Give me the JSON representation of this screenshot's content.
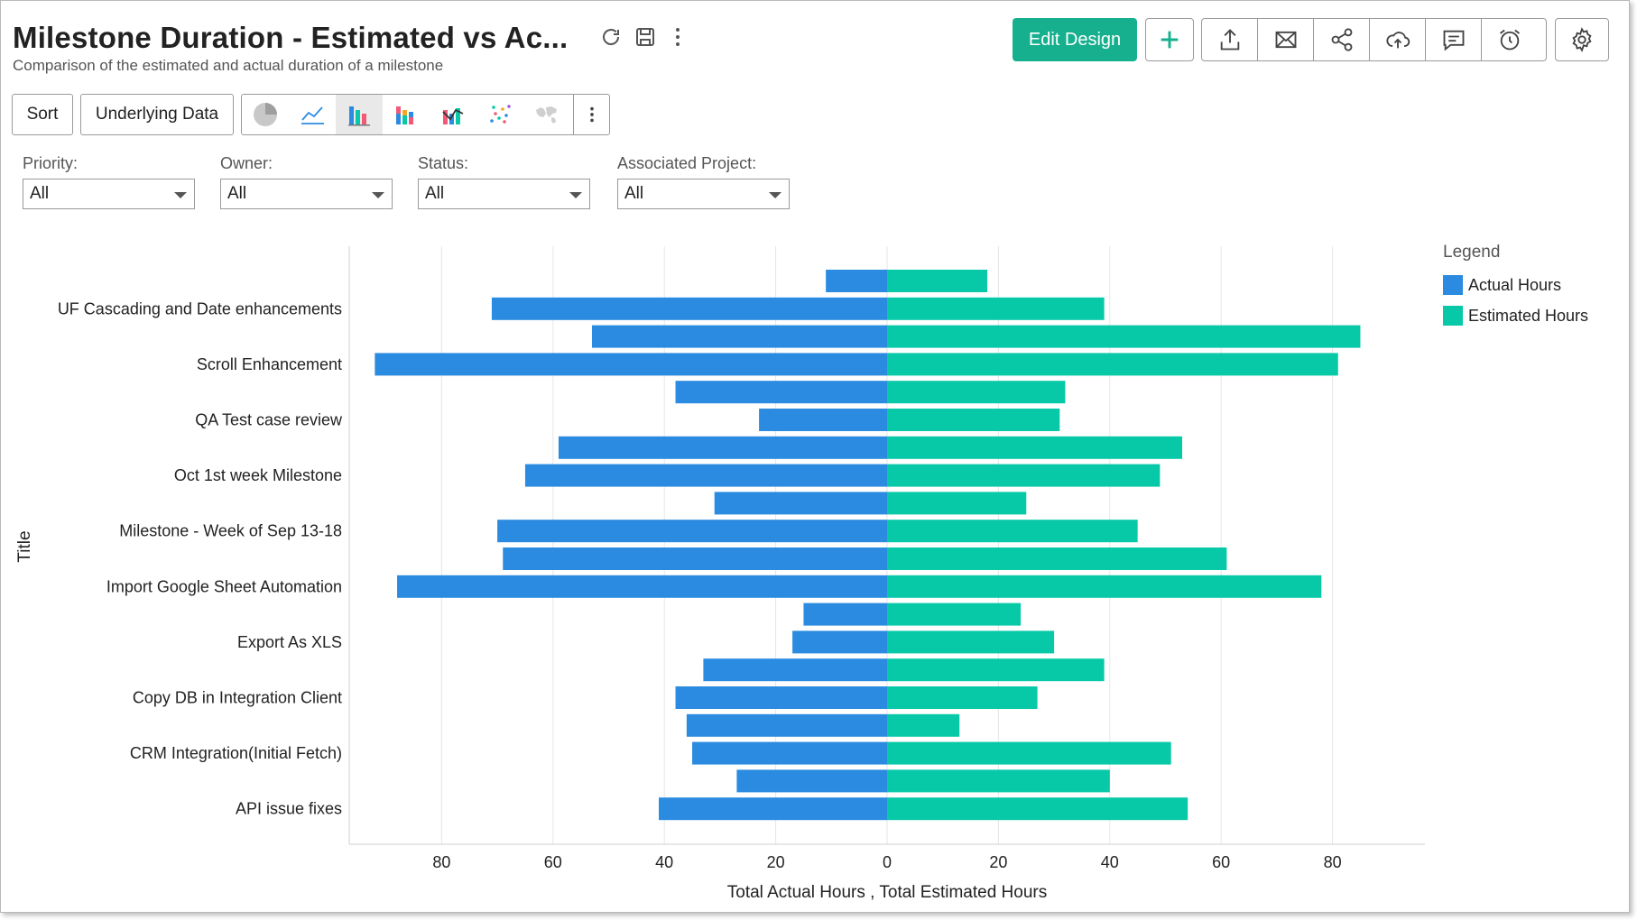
{
  "header": {
    "title": "Milestone Duration - Estimated vs Ac...",
    "subtitle": "Comparison of the estimated and actual duration of a milestone",
    "icons": [
      "refresh-icon",
      "save-icon",
      "more-vertical-icon"
    ]
  },
  "toolbar": {
    "edit_design_label": "Edit Design",
    "accent_color": "#17b08e",
    "icons": [
      "add-icon",
      "export-icon",
      "email-icon",
      "share-icon",
      "publish-cloud-icon",
      "comment-icon",
      "alarm-icon",
      "settings-icon"
    ]
  },
  "controls": {
    "sort_label": "Sort",
    "underlying_data_label": "Underlying Data",
    "chart_types": [
      "pie-chart-icon",
      "line-chart-icon",
      "bar-chart-icon",
      "stacked-bar-chart-icon",
      "combination-chart-icon",
      "scatter-chart-icon",
      "map-chart-icon"
    ],
    "active_chart_type": "bar-chart-icon"
  },
  "filters": [
    {
      "label": "Priority:",
      "value": "All"
    },
    {
      "label": "Owner:",
      "value": "All"
    },
    {
      "label": "Status:",
      "value": "All"
    },
    {
      "label": "Associated Project:",
      "value": "All"
    }
  ],
  "legend": {
    "title": "Legend",
    "items": [
      {
        "label": "Actual Hours",
        "color": "#2a8be0"
      },
      {
        "label": "Estimated Hours",
        "color": "#07c9a8"
      }
    ]
  },
  "chart_data": {
    "type": "bar",
    "orientation": "horizontal-butterfly",
    "xlabel": "Total Actual Hours , Total Estimated Hours",
    "ylabel": "Title",
    "xlim": [
      -97,
      97
    ],
    "x_ticks": [
      -80,
      -60,
      -40,
      -20,
      0,
      20,
      40,
      60,
      80
    ],
    "x_tick_labels": [
      "80",
      "60",
      "40",
      "20",
      "0",
      "20",
      "40",
      "60",
      "80"
    ],
    "grid": "vertical",
    "legend_position": "top-right",
    "categories": [
      "",
      "UF Cascading and Date enhancements",
      "",
      "Scroll Enhancement",
      "",
      "QA Test case review",
      "",
      "Oct 1st week Milestone",
      "",
      "Milestone - Week of Sep 13-18",
      "",
      "Import Google Sheet Automation",
      "",
      "Export As XLS",
      "",
      "Copy DB in Integration Client",
      "",
      "CRM Integration(Initial Fetch)",
      "",
      "API issue fixes"
    ],
    "series": [
      {
        "name": "Actual Hours",
        "color": "#2a8be0",
        "values": [
          11,
          71,
          53,
          92,
          38,
          23,
          59,
          65,
          31,
          70,
          69,
          88,
          15,
          17,
          33,
          38,
          36,
          35,
          27,
          41
        ]
      },
      {
        "name": "Estimated Hours",
        "color": "#07c9a8",
        "values": [
          18,
          39,
          85,
          81,
          32,
          31,
          53,
          49,
          25,
          45,
          61,
          78,
          24,
          30,
          39,
          27,
          13,
          51,
          40,
          54
        ]
      }
    ]
  }
}
